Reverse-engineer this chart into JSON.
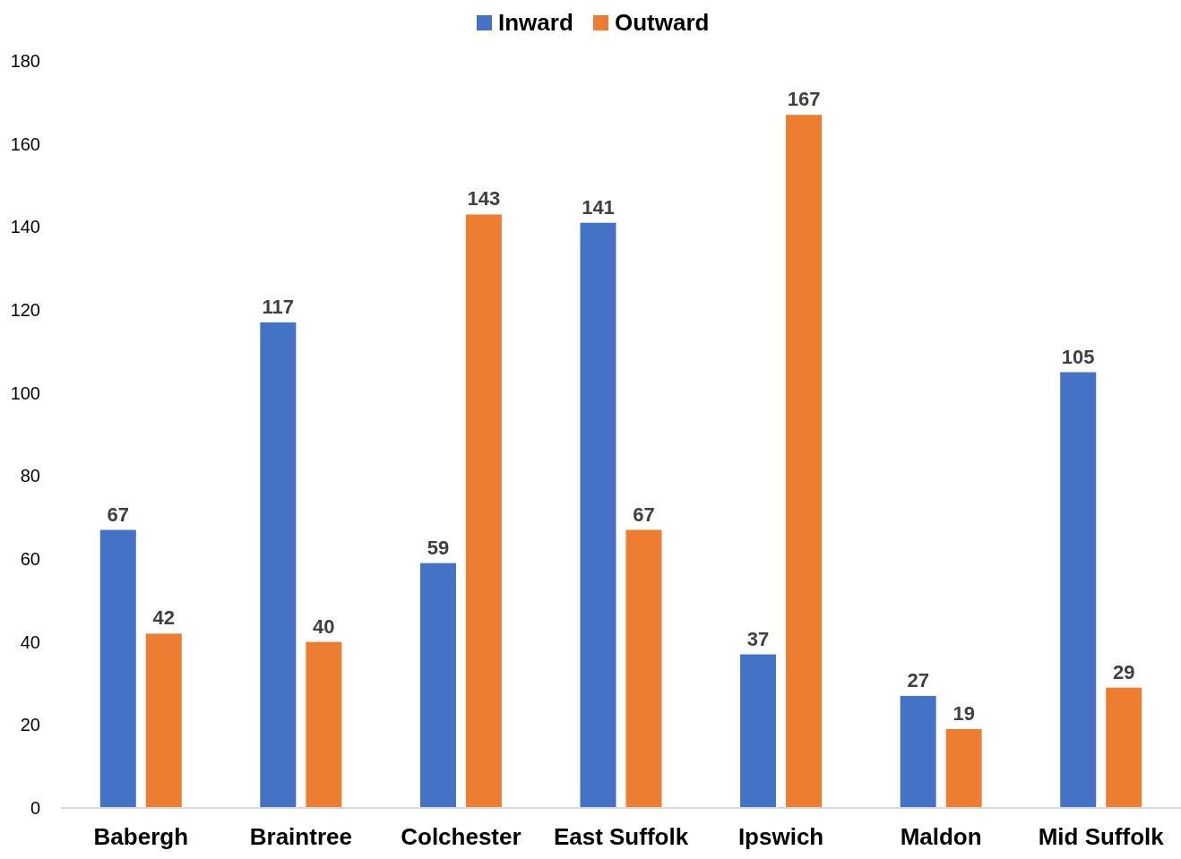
{
  "chart_data": {
    "type": "bar",
    "categories": [
      "Babergh",
      "Braintree",
      "Colchester",
      "East Suffolk",
      "Ipswich",
      "Maldon",
      "Mid Suffolk"
    ],
    "series": [
      {
        "name": "Inward",
        "color": "#4472c4",
        "values": [
          67,
          117,
          59,
          141,
          37,
          27,
          105
        ]
      },
      {
        "name": "Outward",
        "color": "#ed7d31",
        "values": [
          42,
          40,
          143,
          67,
          167,
          19,
          29
        ]
      }
    ],
    "ylim": [
      0,
      180
    ],
    "yticks": [
      0,
      20,
      40,
      60,
      80,
      100,
      120,
      140,
      160,
      180
    ],
    "grid": false,
    "legend": "top",
    "data_labels": true
  }
}
